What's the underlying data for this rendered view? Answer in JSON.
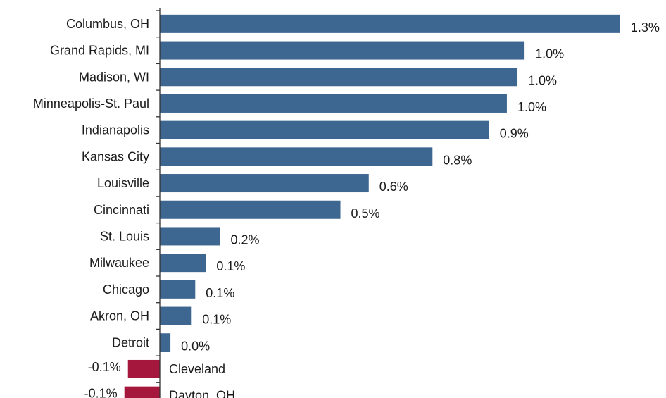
{
  "chart_data": {
    "type": "bar",
    "orientation": "horizontal",
    "title": "",
    "xlabel": "",
    "ylabel": "",
    "grid": false,
    "categories": [
      "Columbus, OH",
      "Grand Rapids, MI",
      "Madison, WI",
      "Minneapolis-St. Paul",
      "Indianapolis",
      "Kansas City",
      "Louisville",
      "Cincinnati",
      "St. Louis",
      "Milwaukee",
      "Chicago",
      "Akron, OH",
      "Detroit",
      "Cleveland",
      "Dayton, OH"
    ],
    "values": [
      1.3,
      1.03,
      1.01,
      0.98,
      0.93,
      0.77,
      0.59,
      0.51,
      0.17,
      0.13,
      0.1,
      0.09,
      0.03,
      -0.09,
      -0.1
    ],
    "value_labels": [
      "1.3%",
      "1.0%",
      "1.0%",
      "1.0%",
      "0.9%",
      "0.8%",
      "0.6%",
      "0.5%",
      "0.2%",
      "0.1%",
      "0.1%",
      "0.1%",
      "0.0%",
      "-0.1%",
      "-0.1%"
    ],
    "xlim": [
      -0.2,
      1.3
    ],
    "colors": {
      "positive": "#3d6690",
      "negative": "#a5173d",
      "axis": "#333333"
    }
  }
}
